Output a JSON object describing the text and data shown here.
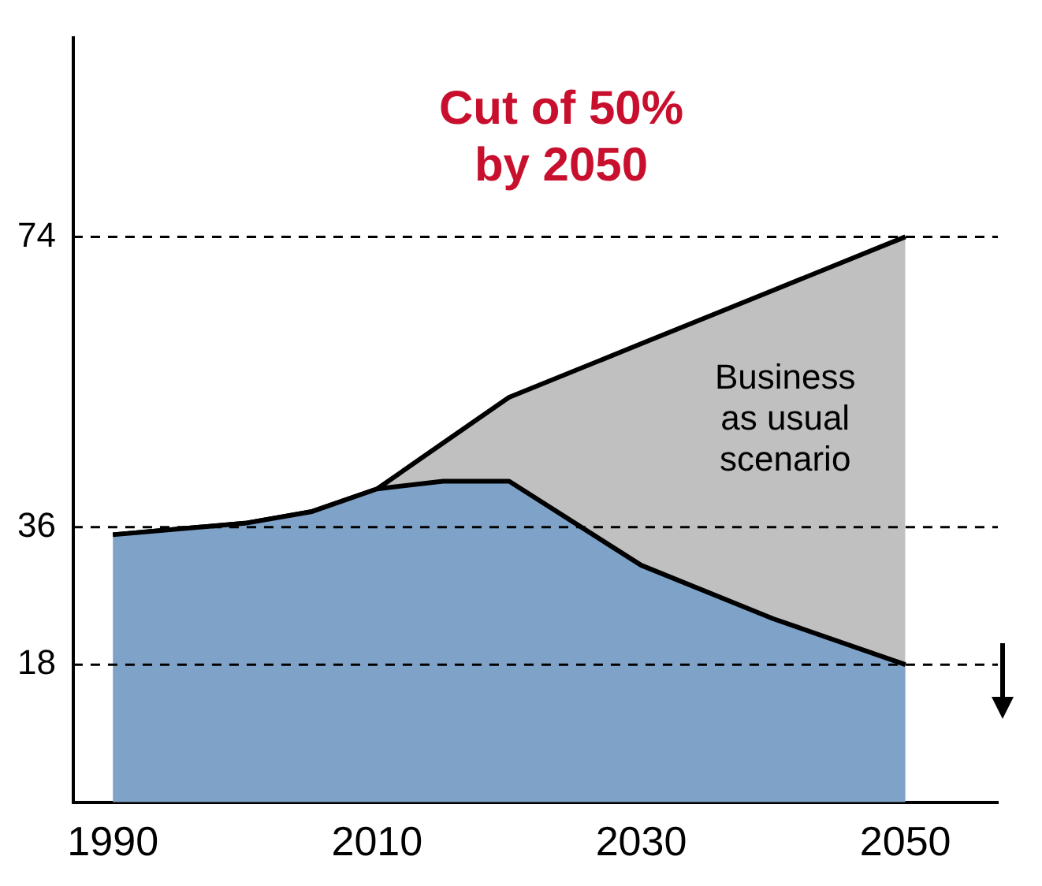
{
  "chart_data": {
    "type": "area",
    "title": "Cut of 50% by 2050",
    "x": [
      1990,
      2000,
      2005,
      2010,
      2015,
      2020,
      2030,
      2040,
      2050
    ],
    "series": [
      {
        "color": "#c0c0c0",
        "values": [
          35,
          36.5,
          38,
          41,
          47,
          53,
          60,
          67,
          74
        ]
      },
      {
        "color": "#7fa3c8",
        "values": [
          35,
          36.5,
          38,
          41,
          42,
          42,
          31,
          24,
          18
        ]
      }
    ],
    "xlim": [
      1987,
      2057
    ],
    "xticks": [
      1990,
      2010,
      2030,
      2050
    ],
    "ylim": [
      0,
      100
    ],
    "yticks": [
      18,
      36,
      74
    ],
    "ref_lines": [
      {
        "axis": "y",
        "value": 74,
        "line_style": "dashed"
      },
      {
        "axis": "y",
        "value": 36,
        "line_style": "dashed"
      },
      {
        "axis": "y",
        "value": 18,
        "line_style": "dashed"
      }
    ],
    "annotations": [
      "Business as usual scenario"
    ],
    "grid": false,
    "legend": false
  }
}
